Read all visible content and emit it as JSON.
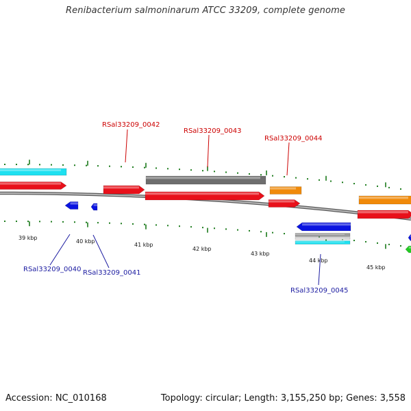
{
  "map": {
    "title": "Renibacterium salmoninarum ATCC 33209, complete genome",
    "accession": "Accession: NC_010168",
    "summary": "Topology: circular; Length: 3,155,250 bp; Genes: 3,558"
  },
  "colors": {
    "backbone": "#8a8a8a",
    "tick": "#1a7a1a",
    "red": "#e8101a",
    "cyan": "#1ee0f0",
    "blue": "#0a14e0",
    "grey": "#6e6e6e",
    "orange": "#f08a0a",
    "green": "#22cc22",
    "label_top": "#cc0000",
    "label_bottom": "#1a1aa0"
  },
  "scale_labels": [
    {
      "text": "39 kbp",
      "kbp": 39
    },
    {
      "text": "40 kbp",
      "kbp": 40
    },
    {
      "text": "41 kbp",
      "kbp": 41
    },
    {
      "text": "42 kbp",
      "kbp": 42
    },
    {
      "text": "43 kbp",
      "kbp": 43
    },
    {
      "text": "44 kbp",
      "kbp": 44
    },
    {
      "text": "45 kbp",
      "kbp": 45
    }
  ],
  "gene_labels": [
    {
      "text": "RSal33209_0042",
      "strand": "top"
    },
    {
      "text": "RSal33209_0043",
      "strand": "top"
    },
    {
      "text": "RSal33209_0044",
      "strand": "top"
    },
    {
      "text": "RSal33209_0040",
      "strand": "bottom"
    },
    {
      "text": "RSal33209_0041",
      "strand": "bottom"
    },
    {
      "text": "RSal33209_0045",
      "strand": "bottom"
    }
  ]
}
